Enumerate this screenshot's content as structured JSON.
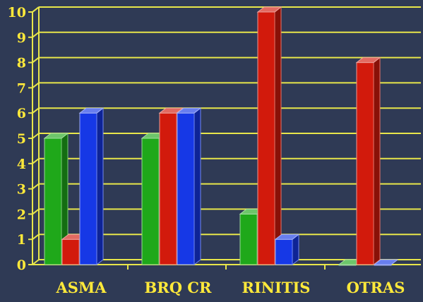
{
  "chart_data": {
    "type": "bar",
    "categories": [
      "ASMA",
      "BRQ CR",
      "RINITIS",
      "OTRAS"
    ],
    "series": [
      {
        "color": "#1fa81a",
        "values": [
          5,
          5,
          2,
          0
        ]
      },
      {
        "color": "#d21a0c",
        "values": [
          1,
          6,
          10,
          8
        ]
      },
      {
        "color": "#1638e6",
        "values": [
          6,
          6,
          1,
          0
        ]
      }
    ],
    "yticks": [
      "0",
      "1",
      "2",
      "3",
      "4",
      "5",
      "6",
      "7",
      "8",
      "9",
      "10"
    ],
    "ylim": [
      0,
      10
    ],
    "title": "",
    "xlabel": "",
    "ylabel": "",
    "grid": true,
    "colors": {
      "background": "#2f3a55",
      "grid": "#e8e64a",
      "labels": "#ffe93a"
    }
  }
}
